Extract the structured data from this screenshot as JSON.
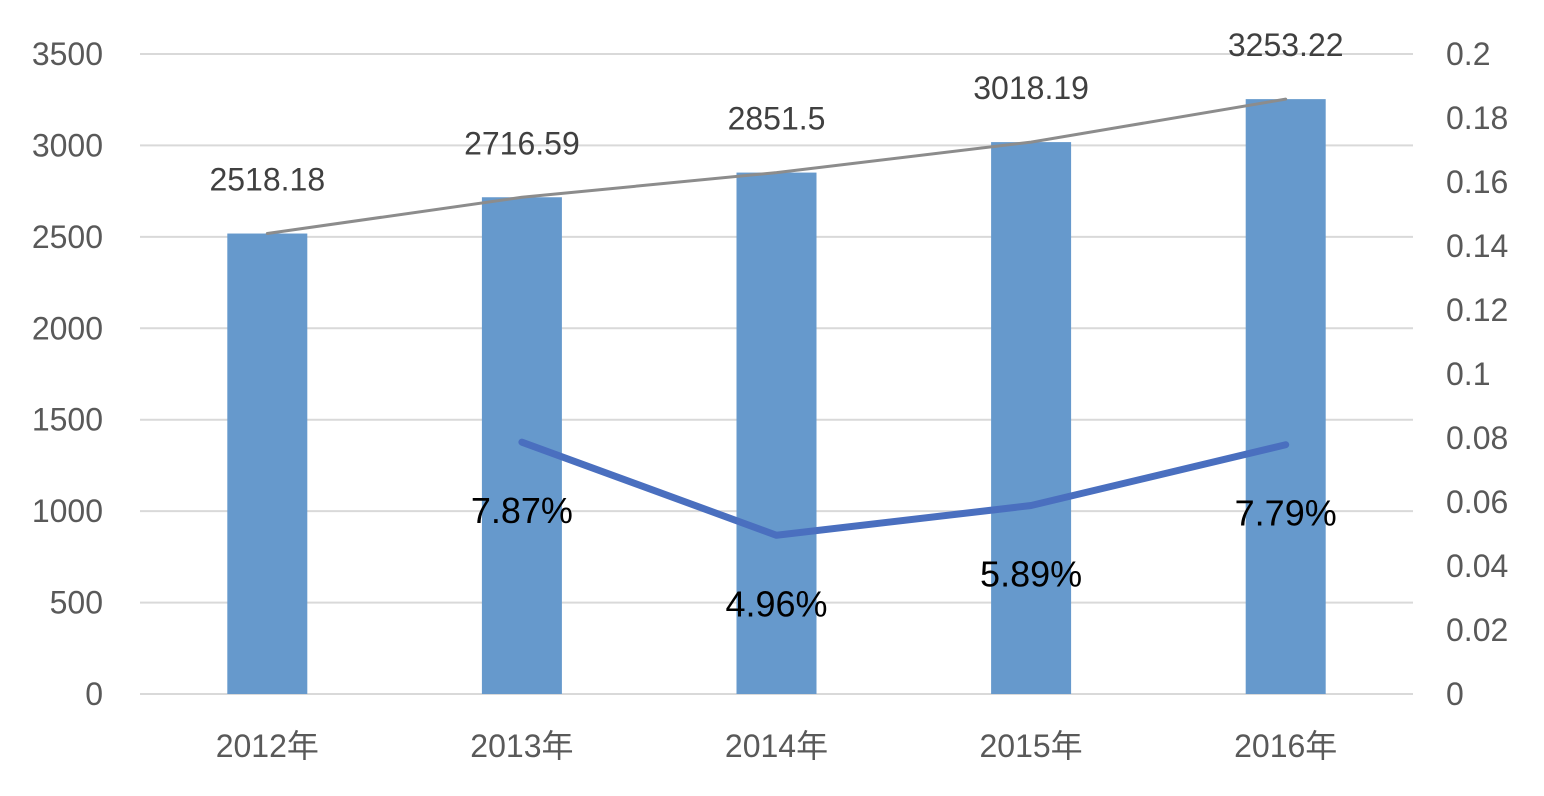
{
  "chart_data": {
    "type": "bar",
    "categories": [
      "2012年",
      "2013年",
      "2014年",
      "2015年",
      "2016年"
    ],
    "series": [
      {
        "type": "bar",
        "axis": "left",
        "color": "#6699cc",
        "values": [
          2518.18,
          2716.59,
          2851.5,
          3018.19,
          3253.22
        ],
        "labels": [
          "2518.18",
          "2716.59",
          "2851.5",
          "3018.19",
          "3253.22"
        ]
      },
      {
        "type": "line",
        "axis": "left",
        "color": "#8c8c8c",
        "values": [
          2518.18,
          2716.59,
          2851.5,
          3018.19,
          3253.22
        ]
      },
      {
        "type": "line",
        "axis": "right",
        "color": "#4a6fbf",
        "values": [
          null,
          0.0787,
          0.0496,
          0.0589,
          0.0779
        ],
        "labels": [
          null,
          "7.87%",
          "4.96%",
          "5.89%",
          "7.79%"
        ]
      }
    ],
    "left_axis": {
      "min": 0,
      "max": 3500,
      "ticks": [
        "0",
        "500",
        "1000",
        "1500",
        "2000",
        "2500",
        "3000",
        "3500"
      ]
    },
    "right_axis": {
      "min": 0,
      "max": 0.2,
      "ticks": [
        "0",
        "0.02",
        "0.04",
        "0.06",
        "0.08",
        "0.1",
        "0.12",
        "0.14",
        "0.16",
        "0.18",
        "0.2"
      ]
    },
    "title": "",
    "xlabel": "",
    "ylabel": "",
    "grid": true
  }
}
